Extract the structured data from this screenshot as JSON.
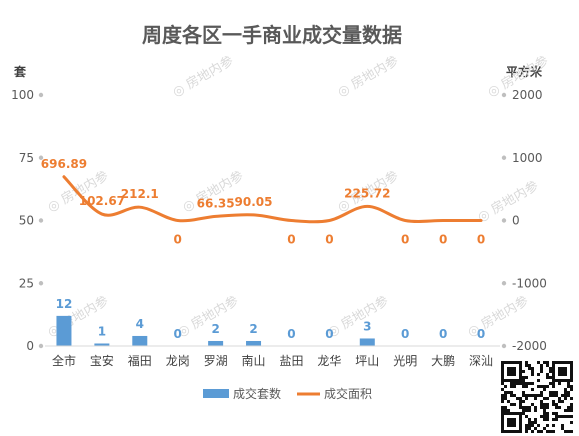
{
  "chart_data": {
    "type": "bar",
    "title": "周度各区一手商业成交量数据",
    "categories": [
      "全市",
      "宝安",
      "福田",
      "龙岗",
      "罗湖",
      "南山",
      "盐田",
      "龙华",
      "坪山",
      "光明",
      "大鹏",
      "深汕"
    ],
    "series": [
      {
        "name": "成交套数",
        "type": "bar",
        "axis": "left",
        "color": "#5b9bd5",
        "values": [
          12,
          1,
          4,
          0,
          2,
          2,
          0,
          0,
          3,
          0,
          0,
          0
        ]
      },
      {
        "name": "成交面积",
        "type": "line",
        "axis": "right",
        "color": "#ed7d31",
        "values": [
          696.89,
          102.67,
          212.1,
          0,
          66.35,
          90.05,
          0,
          0,
          225.72,
          0,
          0,
          0
        ]
      }
    ],
    "y_left": {
      "label": "套",
      "ylim": [
        0,
        100
      ],
      "ticks": [
        0,
        25,
        50,
        75,
        100
      ]
    },
    "y_right": {
      "label": "平方米",
      "ylim": [
        -2000,
        2000
      ],
      "ticks": [
        -2000,
        -1000,
        0,
        1000,
        2000
      ]
    },
    "legend_position": "bottom",
    "grid": false
  },
  "watermark": "房地内参"
}
